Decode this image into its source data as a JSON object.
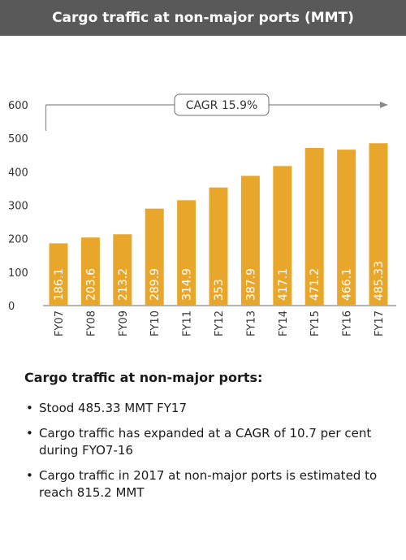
{
  "title": "Cargo traffic at non-major ports (MMT)",
  "chart_data": {
    "type": "bar",
    "categories": [
      "FY07",
      "FY08",
      "FY09",
      "FY10",
      "FY11",
      "FY12",
      "FY13",
      "FY14",
      "FY15",
      "FY16",
      "FY17"
    ],
    "values": [
      186.1,
      203.6,
      213.2,
      289.9,
      314.9,
      353,
      387.9,
      417.1,
      471.2,
      466.1,
      485.33
    ],
    "value_labels": [
      "186.1",
      "203.6",
      "213.2",
      "289.9",
      "314.9",
      "353",
      "387.9",
      "417.1",
      "471.2",
      "466.1",
      "485.33"
    ],
    "ylim": [
      0,
      600
    ],
    "yticks": [
      0,
      100,
      200,
      300,
      400,
      500,
      600
    ],
    "annotation": "CAGR 15.9%",
    "grid": false,
    "colors": {
      "bar": "#E8A72B",
      "value_label": "#ffffff",
      "axis": "#6b6b6b",
      "arrow": "#8a8a8a"
    }
  },
  "notes": {
    "heading": "Cargo traffic at non-major ports:",
    "bullets": [
      "Stood 485.33 MMT FY17",
      "Cargo traffic has expanded at a CAGR of 10.7 per  cent during FYO7-16",
      "Cargo traffic in 2017 at non-major ports is estimated to reach 815.2 MMT"
    ]
  }
}
